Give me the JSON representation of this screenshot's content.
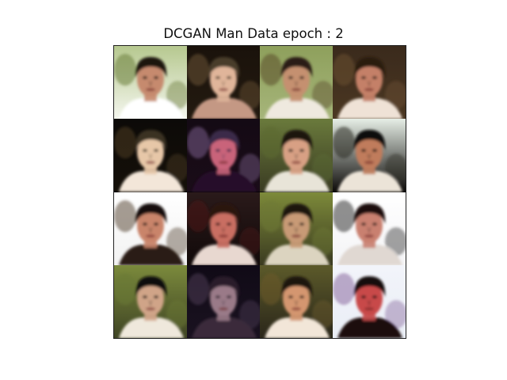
{
  "title": "DCGAN Man Data epoch : 2",
  "grid": {
    "rows": 4,
    "cols": 4,
    "tiles": [
      {
        "name": "sample-1",
        "bg_top": "#b6c88f",
        "bg_bottom": "#f4f6ee",
        "hair": "#1a120c",
        "skin": "#c68a6e",
        "cloth": "#ffffff",
        "accent": "#6a7d3a"
      },
      {
        "name": "sample-2",
        "bg_top": "#1a120b",
        "bg_bottom": "#231a10",
        "hair": "#4a3c2a",
        "skin": "#e0b59a",
        "cloth": "#c49884",
        "accent": "#6a5436"
      },
      {
        "name": "sample-3",
        "bg_top": "#8ea05c",
        "bg_bottom": "#a6b57a",
        "hair": "#2a1e14",
        "skin": "#c59070",
        "cloth": "#efe9df",
        "accent": "#5a4c2a"
      },
      {
        "name": "sample-4",
        "bg_top": "#3a2a1c",
        "bg_bottom": "#4b3722",
        "hair": "#2a1a10",
        "skin": "#c48068",
        "cloth": "#efe2d6",
        "accent": "#6a4e30"
      },
      {
        "name": "sample-5",
        "bg_top": "#0c0a08",
        "bg_bottom": "#151009",
        "hair": "#3a3020",
        "skin": "#e7c7a8",
        "cloth": "#f3e6d9",
        "accent": "#4a3a22"
      },
      {
        "name": "sample-6",
        "bg_top": "#140a14",
        "bg_bottom": "#1a0c18",
        "hair": "#3a2a4a",
        "skin": "#c9647a",
        "cloth": "#28102a",
        "accent": "#7a5d8a"
      },
      {
        "name": "sample-7",
        "bg_top": "#6a7a3c",
        "bg_bottom": "#3a3b22",
        "hair": "#1a140e",
        "skin": "#d8a084",
        "cloth": "#e8e4d8",
        "accent": "#5b6a30"
      },
      {
        "name": "sample-8",
        "bg_top": "#e6eee6",
        "bg_bottom": "#0c0a08",
        "hair": "#0e0b08",
        "skin": "#c07c5c",
        "cloth": "#ece4d8",
        "accent": "#2a2a22"
      },
      {
        "name": "sample-9",
        "bg_top": "#ffffff",
        "bg_bottom": "#f2f2f2",
        "hair": "#120c08",
        "skin": "#c9846a",
        "cloth": "#2a1a14",
        "accent": "#5c4a3a"
      },
      {
        "name": "sample-10",
        "bg_top": "#2a1a1a",
        "bg_bottom": "#110909",
        "hair": "#2a1210",
        "skin": "#c96e62",
        "cloth": "#e8d8d0",
        "accent": "#4a1a1a"
      },
      {
        "name": "sample-11",
        "bg_top": "#7d8a3a",
        "bg_bottom": "#3a3a20",
        "hair": "#1a140c",
        "skin": "#c89a76",
        "cloth": "#dcd4c0",
        "accent": "#6f7a36"
      },
      {
        "name": "sample-12",
        "bg_top": "#ffffff",
        "bg_bottom": "#f4f4f6",
        "hair": "#1a100c",
        "skin": "#c98070",
        "cloth": "#e0d8d2",
        "accent": "#333333"
      },
      {
        "name": "sample-13",
        "bg_top": "#7b8a3c",
        "bg_bottom": "#3f4424",
        "hair": "#110d08",
        "skin": "#d0a488",
        "cloth": "#efe8dc",
        "accent": "#6a7a34"
      },
      {
        "name": "sample-14",
        "bg_top": "#100a16",
        "bg_bottom": "#1a1220",
        "hair": "#2a1e2a",
        "skin": "#9a7a88",
        "cloth": "#3a2a3a",
        "accent": "#4a3a52"
      },
      {
        "name": "sample-15",
        "bg_top": "#5c5a2a",
        "bg_bottom": "#2a261a",
        "hair": "#1e140c",
        "skin": "#d49670",
        "cloth": "#f2e6d8",
        "accent": "#6b5a2c"
      },
      {
        "name": "sample-16",
        "bg_top": "#f2f4fa",
        "bg_bottom": "#eaeef6",
        "hair": "#120c0a",
        "skin": "#c84a4a",
        "cloth": "#1a0e0c",
        "accent": "#8a6aa0"
      }
    ]
  }
}
